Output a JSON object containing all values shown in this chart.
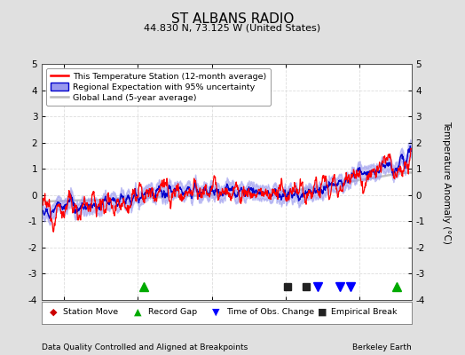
{
  "title": "ST ALBANS RADIO",
  "subtitle": "44.830 N, 73.125 W (United States)",
  "ylabel": "Temperature Anomaly (°C)",
  "xlabel_left": "Data Quality Controlled and Aligned at Breakpoints",
  "xlabel_right": "Berkeley Earth",
  "ylim": [
    -4,
    5
  ],
  "xlim": [
    1914,
    2014
  ],
  "xticks": [
    1920,
    1940,
    1960,
    1980,
    2000
  ],
  "yticks": [
    -4,
    -3,
    -2,
    -1,
    0,
    1,
    2,
    3,
    4,
    5
  ],
  "bg_color": "#e0e0e0",
  "plot_bg_color": "#ffffff",
  "grid_color": "#dddddd",
  "record_gaps": [
    1941.5,
    2010.0
  ],
  "obs_changes": [
    1988.5,
    1994.5,
    1997.5
  ],
  "empirical_breaks": [
    1980.5,
    1985.5
  ],
  "legend_labels": [
    "This Temperature Station (12-month average)",
    "Regional Expectation with 95% uncertainty",
    "Global Land (5-year average)"
  ],
  "station_color": "#ff0000",
  "regional_color": "#0000cc",
  "regional_fill": "#9999ee",
  "global_color": "#bbbbbb",
  "seed": 12345
}
